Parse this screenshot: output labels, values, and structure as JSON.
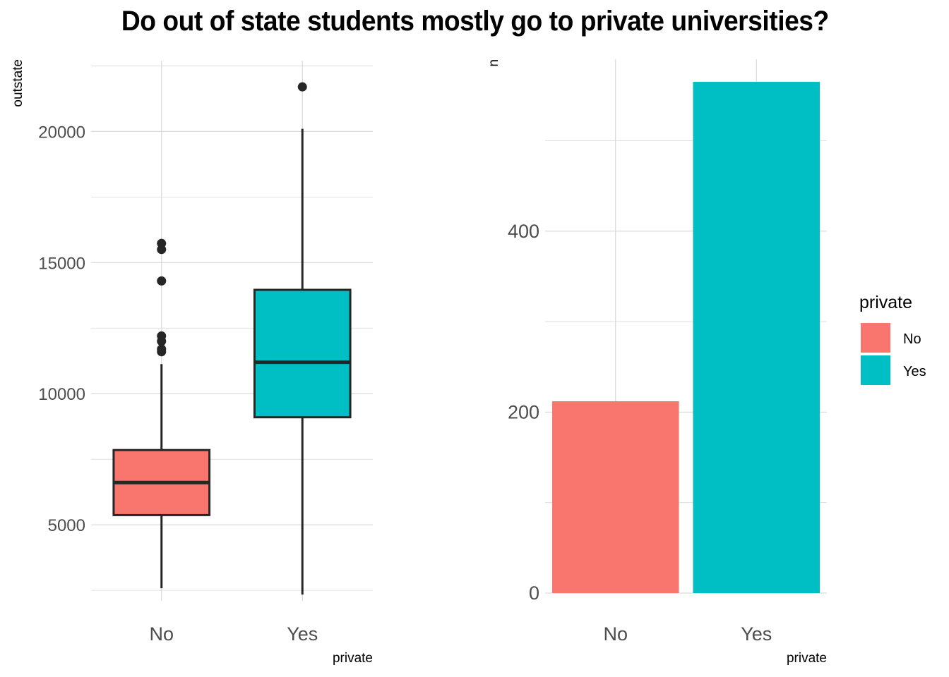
{
  "title": "Do out of state students mostly go to private universities?",
  "colors": {
    "No": "#F8766D",
    "Yes": "#00BFC4",
    "grid": "#d9d9d9",
    "ink": "#262626"
  },
  "legend": {
    "title": "private",
    "placement": "right",
    "items": [
      "No",
      "Yes"
    ]
  },
  "chart_data": [
    {
      "type": "box",
      "categories": [
        "No",
        "Yes"
      ],
      "xlabel": "private",
      "ylabel": "outstate",
      "ylim": [
        2100,
        22700
      ],
      "yticks": [
        5000,
        10000,
        15000,
        20000
      ],
      "grid": true,
      "boxes": [
        {
          "name": "No",
          "min": 2580,
          "q1": 5370,
          "median": 6610,
          "q3": 7850,
          "max": 11130,
          "outliers": [
            11600,
            11700,
            12000,
            12200,
            14300,
            15500,
            15730
          ]
        },
        {
          "name": "Yes",
          "min": 2340,
          "q1": 9100,
          "median": 11200,
          "q3": 13960,
          "max": 20100,
          "outliers": [
            21700
          ]
        }
      ]
    },
    {
      "type": "bar",
      "categories": [
        "No",
        "Yes"
      ],
      "values": [
        212,
        565
      ],
      "xlabel": "private",
      "ylabel": "n",
      "ylim": [
        0,
        590
      ],
      "yticks": [
        0,
        200,
        400
      ],
      "grid": true
    }
  ]
}
